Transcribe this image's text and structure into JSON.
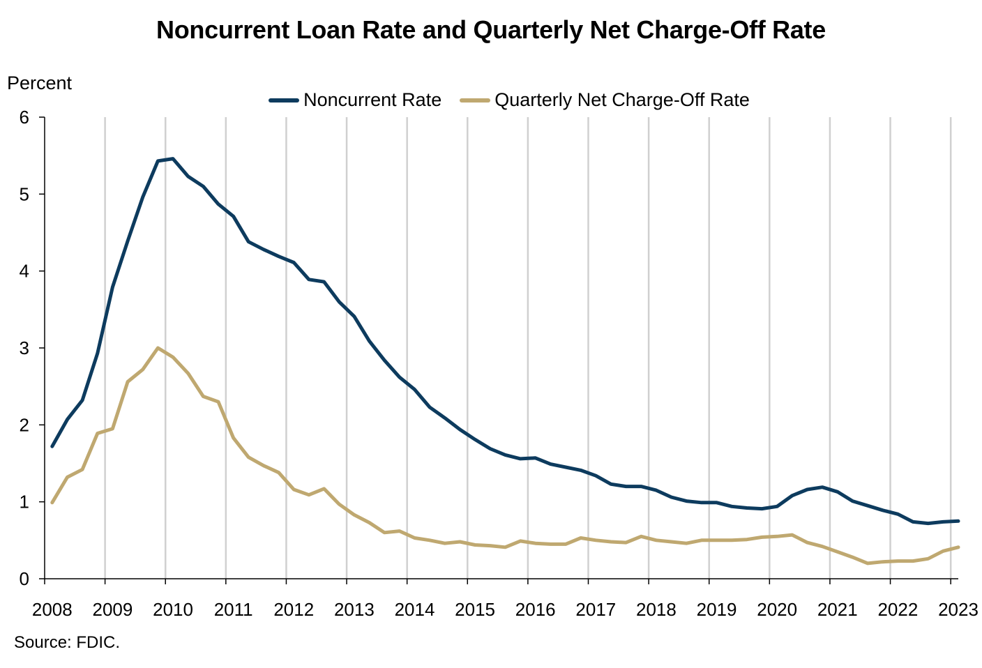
{
  "title": "Noncurrent Loan Rate and Quarterly Net Charge-Off Rate",
  "source": "Source: FDIC.",
  "chart_data": {
    "type": "line",
    "title": "Noncurrent Loan Rate and Quarterly Net Charge-Off Rate",
    "ylabel": "Percent",
    "xlabel": "",
    "ylim": [
      0,
      6
    ],
    "yticks": [
      0,
      1,
      2,
      3,
      4,
      5,
      6
    ],
    "xticks": [
      "2008",
      "2009",
      "2010",
      "2011",
      "2012",
      "2013",
      "2014",
      "2015",
      "2016",
      "2017",
      "2018",
      "2019",
      "2020",
      "2021",
      "2022",
      "2023"
    ],
    "grid": "vertical",
    "legend": "top-center",
    "x_start": "2008 Q1",
    "x_frequency": "quarterly",
    "series": [
      {
        "name": "Noncurrent Rate",
        "color": "#0d3b5e",
        "values": [
          1.72,
          2.07,
          2.32,
          2.93,
          3.79,
          4.39,
          4.96,
          5.43,
          5.46,
          5.23,
          5.1,
          4.87,
          4.71,
          4.38,
          4.28,
          4.19,
          4.11,
          3.89,
          3.86,
          3.6,
          3.41,
          3.09,
          2.84,
          2.62,
          2.46,
          2.23,
          2.09,
          1.94,
          1.81,
          1.69,
          1.61,
          1.56,
          1.57,
          1.49,
          1.45,
          1.41,
          1.34,
          1.23,
          1.2,
          1.2,
          1.15,
          1.06,
          1.01,
          0.99,
          0.99,
          0.94,
          0.92,
          0.91,
          0.94,
          1.08,
          1.16,
          1.19,
          1.13,
          1.01,
          0.95,
          0.89,
          0.84,
          0.74,
          0.72,
          0.74,
          0.75
        ]
      },
      {
        "name": "Quarterly Net Charge-Off Rate",
        "color": "#bfa870",
        "values": [
          0.99,
          1.32,
          1.42,
          1.89,
          1.95,
          2.56,
          2.72,
          3.0,
          2.88,
          2.67,
          2.37,
          2.3,
          1.83,
          1.58,
          1.47,
          1.38,
          1.16,
          1.09,
          1.17,
          0.97,
          0.83,
          0.73,
          0.6,
          0.62,
          0.53,
          0.5,
          0.46,
          0.48,
          0.44,
          0.43,
          0.41,
          0.49,
          0.46,
          0.45,
          0.45,
          0.53,
          0.5,
          0.48,
          0.47,
          0.55,
          0.5,
          0.48,
          0.46,
          0.5,
          0.5,
          0.5,
          0.51,
          0.54,
          0.55,
          0.57,
          0.47,
          0.42,
          0.35,
          0.28,
          0.2,
          0.22,
          0.23,
          0.23,
          0.26,
          0.36,
          0.41
        ]
      }
    ]
  }
}
